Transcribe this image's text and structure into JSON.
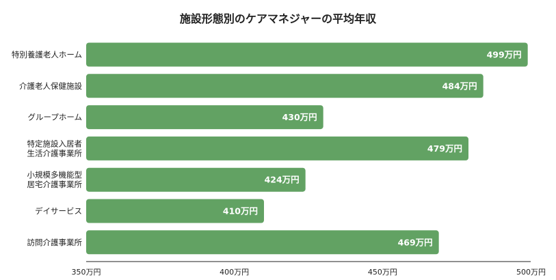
{
  "chart_data": {
    "type": "bar",
    "orientation": "horizontal",
    "title": "施設形態別のケアマネジャーの平均年収",
    "xlabel": "",
    "ylabel": "",
    "categories": [
      [
        "特別養護老人ホーム"
      ],
      [
        "介護老人保健施設"
      ],
      [
        "グループホーム"
      ],
      [
        "特定施設入居者",
        "生活介護事業所"
      ],
      [
        "小規模多機能型",
        "居宅介護事業所"
      ],
      [
        "デイサービス"
      ],
      [
        "訪問介護事業所"
      ]
    ],
    "values": [
      499,
      484,
      430,
      479,
      424,
      410,
      469
    ],
    "value_labels": [
      "499万円",
      "484万円",
      "430万円",
      "479万円",
      "424万円",
      "410万円",
      "469万円"
    ],
    "xlim": [
      350,
      500
    ],
    "xticks": [
      350,
      400,
      450,
      500
    ],
    "xtick_labels": [
      "350万円",
      "400万円",
      "450万円",
      "500万円"
    ],
    "grid": false,
    "bar_color": "#62a263"
  }
}
